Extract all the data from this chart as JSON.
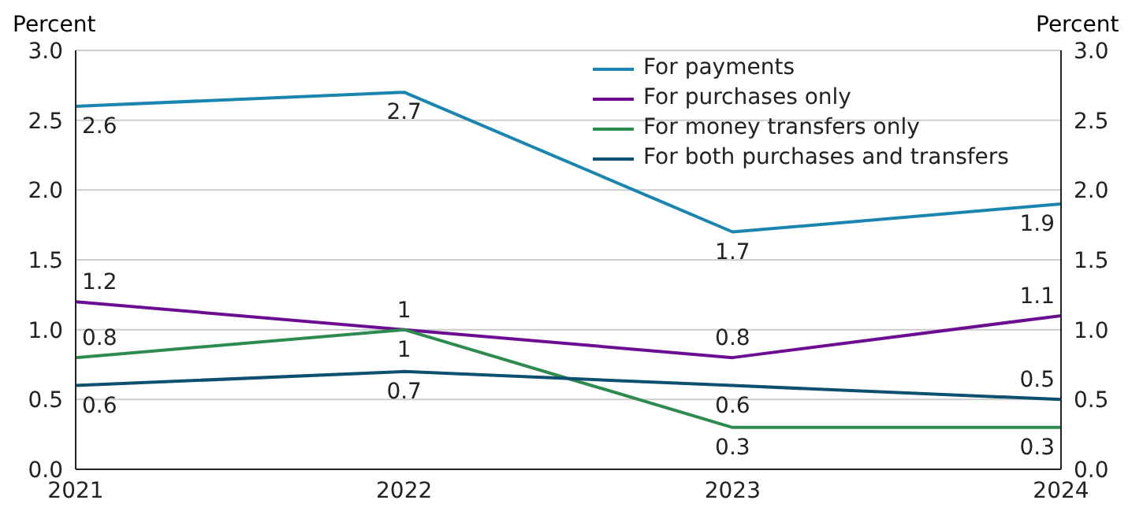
{
  "chart_data": {
    "type": "line",
    "ylabel": "Percent",
    "y2label": "Percent",
    "x": [
      2021,
      2022,
      2023,
      2024
    ],
    "xlim": [
      2021,
      2024
    ],
    "xticks": [
      2021,
      2022,
      2023,
      2024
    ],
    "ylim": [
      0,
      3
    ],
    "yticks": [
      {
        "value": 0,
        "label": "0.0"
      },
      {
        "value": 0.5,
        "label": "0.5"
      },
      {
        "value": 1,
        "label": "1.0"
      },
      {
        "value": 1.5,
        "label": "1.5"
      },
      {
        "value": 2,
        "label": "2.0"
      },
      {
        "value": 2.5,
        "label": "2.5"
      },
      {
        "value": 3,
        "label": "3.0"
      }
    ],
    "y2lim": [
      0,
      3
    ],
    "y2ticks": [
      {
        "value": 0,
        "label": "0.0"
      },
      {
        "value": 0.5,
        "label": "0.5"
      },
      {
        "value": 1,
        "label": "1.0"
      },
      {
        "value": 1.5,
        "label": "1.5"
      },
      {
        "value": 2,
        "label": "2.0"
      },
      {
        "value": 2.5,
        "label": "2.5"
      },
      {
        "value": 3,
        "label": "3.0"
      }
    ],
    "series": [
      {
        "name": "For payments",
        "color": "#1a86b0",
        "values": [
          2.6,
          2.7,
          1.7,
          1.9
        ]
      },
      {
        "name": "For purchases only",
        "color": "#6a0d91",
        "values": [
          1.2,
          1,
          0.8,
          1.1
        ]
      },
      {
        "name": "For money transfers only",
        "color": "#2e8b4f",
        "values": [
          0.8,
          1,
          0.3,
          0.3
        ]
      },
      {
        "name": "For both purchases and transfers",
        "color": "#0d4f6e",
        "values": [
          0.6,
          0.7,
          0.6,
          0.5
        ]
      }
    ],
    "grid": "y",
    "legend": "top right",
    "marker": "none",
    "line_style": "solid",
    "data_labels": true
  }
}
